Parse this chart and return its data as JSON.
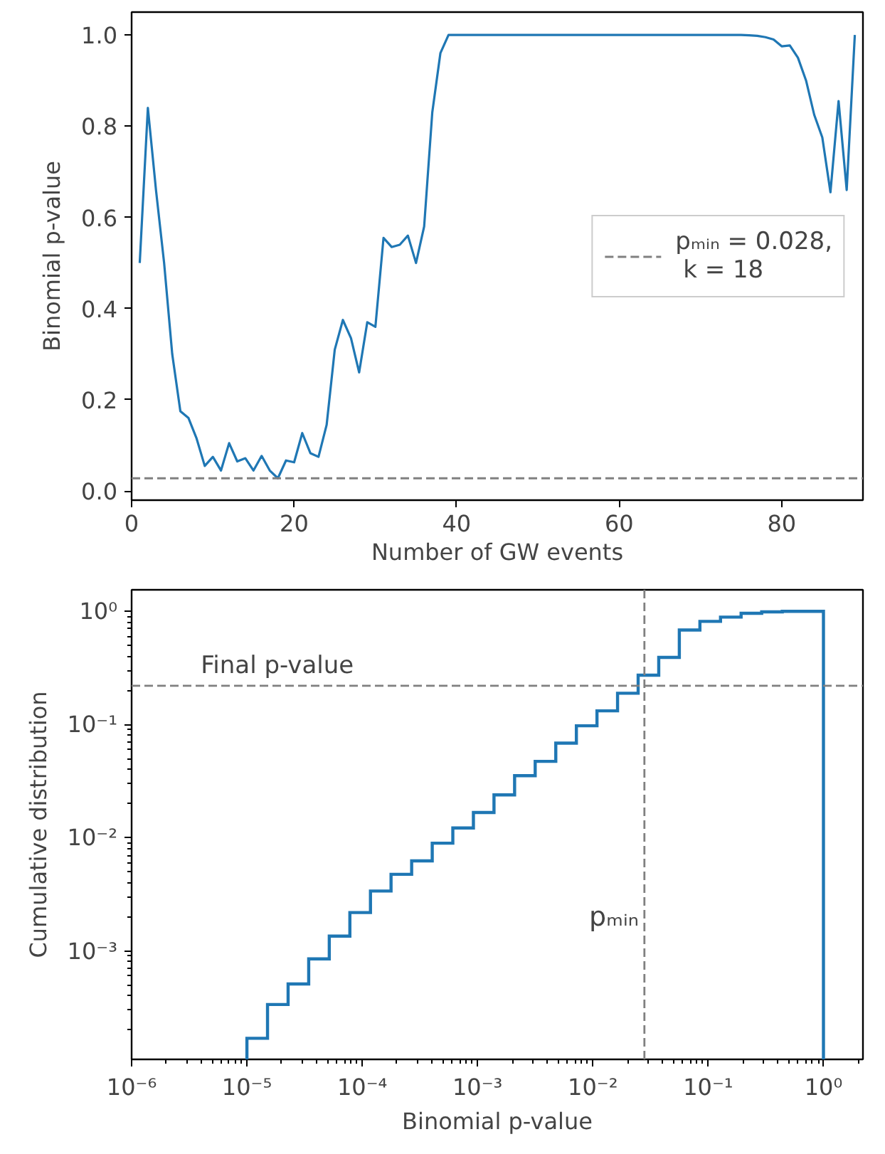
{
  "chart_data": [
    {
      "type": "line",
      "xlabel": "Number of GW events",
      "ylabel": "Binomial p-value",
      "x": [
        1,
        2,
        3,
        4,
        5,
        6,
        7,
        8,
        9,
        10,
        11,
        12,
        13,
        14,
        15,
        16,
        17,
        18,
        19,
        20,
        21,
        22,
        23,
        24,
        25,
        26,
        27,
        28,
        29,
        30,
        31,
        32,
        33,
        34,
        35,
        36,
        37,
        38,
        39,
        40,
        41,
        42,
        43,
        44,
        45,
        46,
        47,
        48,
        49,
        50,
        51,
        52,
        53,
        54,
        55,
        56,
        57,
        58,
        59,
        60,
        61,
        62,
        63,
        64,
        65,
        66,
        67,
        68,
        69,
        70,
        71,
        72,
        73,
        74,
        75,
        76,
        77,
        78,
        79,
        80,
        81,
        82,
        83,
        84,
        85,
        86,
        87,
        88,
        89
      ],
      "series": [
        {
          "color": "#1f77b4",
          "values": [
            0.5,
            0.84,
            0.66,
            0.5,
            0.3,
            0.175,
            0.16,
            0.115,
            0.055,
            0.075,
            0.045,
            0.105,
            0.065,
            0.072,
            0.045,
            0.077,
            0.045,
            0.028,
            0.067,
            0.063,
            0.127,
            0.083,
            0.075,
            0.145,
            0.31,
            0.375,
            0.335,
            0.26,
            0.37,
            0.36,
            0.555,
            0.535,
            0.54,
            0.56,
            0.5,
            0.58,
            0.83,
            0.96,
            1.0,
            1.0,
            1.0,
            1.0,
            1.0,
            1.0,
            1.0,
            1.0,
            1.0,
            1.0,
            1.0,
            1.0,
            1.0,
            1.0,
            1.0,
            1.0,
            1.0,
            1.0,
            1.0,
            1.0,
            1.0,
            1.0,
            1.0,
            1.0,
            1.0,
            1.0,
            1.0,
            1.0,
            1.0,
            1.0,
            1.0,
            1.0,
            1.0,
            1.0,
            1.0,
            1.0,
            1.0,
            0.999,
            0.998,
            0.995,
            0.99,
            0.975,
            0.977,
            0.95,
            0.9,
            0.825,
            0.775,
            0.655,
            0.855,
            0.66,
            1.0
          ]
        }
      ],
      "xlim": [
        0,
        90
      ],
      "ylim": [
        -0.02,
        1.05
      ],
      "xticks": [
        0,
        20,
        40,
        60,
        80
      ],
      "yticks": [
        {
          "value": 0,
          "label": "0.0"
        },
        {
          "value": 0.2,
          "label": "0.2"
        },
        {
          "value": 0.4,
          "label": "0.4"
        },
        {
          "value": 0.6,
          "label": "0.6"
        },
        {
          "value": 0.8,
          "label": "0.8"
        },
        {
          "value": 1.0,
          "label": "1.0"
        }
      ],
      "ref_lines": [
        {
          "axis": "y",
          "value": 0.028,
          "label": "pₘᵢₙ = 0.028,\n k = 18",
          "color": "#808080",
          "line_style": "dashed"
        }
      ],
      "legend": "right"
    },
    {
      "type": "histogram",
      "xlabel": "Binomial p-value",
      "ylabel": "Cumulative distribution",
      "log": "xy",
      "color": "#1f77b4",
      "bins": [
        1e-05,
        1.509e-05,
        2.276e-05,
        3.434e-05,
        5.179e-05,
        7.813e-05,
        0.0001179,
        0.0001778,
        0.0002683,
        0.0004047,
        0.0006105,
        0.000921,
        0.001389,
        0.002096,
        0.003162,
        0.004771,
        0.007197,
        0.01086,
        0.01638,
        0.02471,
        0.03728,
        0.05623,
        0.08483,
        0.128,
        0.1931,
        0.2912,
        0.4394,
        0.6629,
        1
      ],
      "values": [
        0.000169,
        0.000336,
        0.00051,
        0.00085,
        0.00135,
        0.00218,
        0.00338,
        0.00475,
        0.00624,
        0.00895,
        0.0122,
        0.0167,
        0.0239,
        0.0353,
        0.0473,
        0.0685,
        0.0975,
        0.132,
        0.189,
        0.273,
        0.392,
        0.684,
        0.815,
        0.889,
        0.962,
        0.99,
        1.0,
        1.0
      ],
      "xlim": [
        1e-06,
        2.2
      ],
      "ylim": [
        0.00011,
        1.55
      ],
      "xticks": [
        {
          "value": 1e-06,
          "label": "10⁻⁶"
        },
        {
          "value": 1e-05,
          "label": "10⁻⁵"
        },
        {
          "value": 0.0001,
          "label": "10⁻⁴"
        },
        {
          "value": 0.001,
          "label": "10⁻³"
        },
        {
          "value": 0.01,
          "label": "10⁻²"
        },
        {
          "value": 0.1,
          "label": "10⁻¹"
        },
        {
          "value": 1,
          "label": "10⁰"
        }
      ],
      "yticks": [
        {
          "value": 0.001,
          "label": "10⁻³"
        },
        {
          "value": 0.01,
          "label": "10⁻²"
        },
        {
          "value": 0.1,
          "label": "10⁻¹"
        },
        {
          "value": 1,
          "label": "10⁰"
        }
      ],
      "ref_lines": [
        {
          "axis": "y",
          "value": 0.22,
          "label": "Final p-value",
          "color": "#808080",
          "line_style": "dashed"
        },
        {
          "axis": "x",
          "value": 0.028,
          "label": "pₘᵢₙ",
          "color": "#808080",
          "line_style": "dashed"
        }
      ]
    }
  ]
}
